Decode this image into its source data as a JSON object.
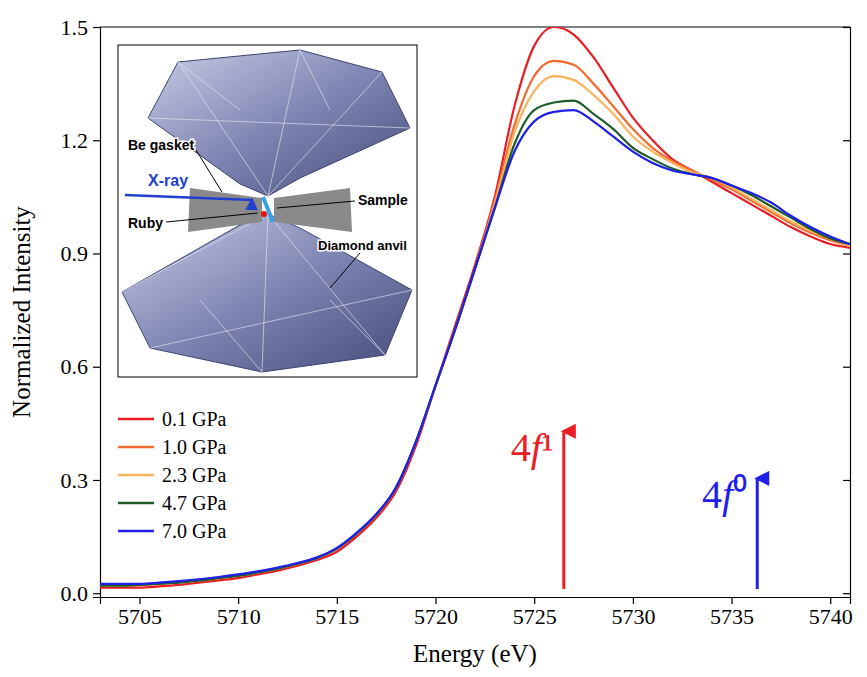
{
  "chart_data": {
    "type": "line",
    "x_label": "Energy (eV)",
    "y_label": "Normalized Intensity",
    "x": [
      5703,
      5704,
      5705,
      5706,
      5707,
      5708,
      5709,
      5710,
      5711,
      5712,
      5713,
      5714,
      5715,
      5716,
      5717,
      5718,
      5719,
      5720,
      5721,
      5722,
      5723,
      5724,
      5725,
      5726,
      5727,
      5728,
      5729,
      5730,
      5731,
      5732,
      5733,
      5734,
      5735,
      5736,
      5737,
      5738,
      5739,
      5740,
      5741
    ],
    "series": [
      {
        "name": "0.1 GPa",
        "color": "#ec1c24",
        "values": [
          0.015,
          0.015,
          0.015,
          0.018,
          0.022,
          0.028,
          0.034,
          0.04,
          0.05,
          0.06,
          0.073,
          0.088,
          0.11,
          0.15,
          0.2,
          0.27,
          0.39,
          0.55,
          0.71,
          0.87,
          1.05,
          1.29,
          1.45,
          1.5,
          1.48,
          1.42,
          1.34,
          1.26,
          1.2,
          1.15,
          1.12,
          1.09,
          1.06,
          1.03,
          1.0,
          0.97,
          0.945,
          0.925,
          0.915
        ]
      },
      {
        "name": "1.0 GPa",
        "color": "#f26b30",
        "values": [
          0.02,
          0.02,
          0.022,
          0.025,
          0.028,
          0.033,
          0.04,
          0.046,
          0.055,
          0.065,
          0.078,
          0.093,
          0.118,
          0.158,
          0.208,
          0.28,
          0.4,
          0.55,
          0.7,
          0.86,
          1.04,
          1.24,
          1.37,
          1.41,
          1.4,
          1.35,
          1.29,
          1.23,
          1.18,
          1.145,
          1.12,
          1.095,
          1.07,
          1.04,
          1.01,
          0.98,
          0.955,
          0.935,
          0.92
        ]
      },
      {
        "name": "2.3 GPa",
        "color": "#f7b560",
        "values": [
          0.02,
          0.02,
          0.022,
          0.025,
          0.028,
          0.033,
          0.04,
          0.046,
          0.055,
          0.065,
          0.078,
          0.093,
          0.118,
          0.158,
          0.208,
          0.28,
          0.4,
          0.55,
          0.7,
          0.86,
          1.03,
          1.22,
          1.33,
          1.37,
          1.36,
          1.32,
          1.27,
          1.21,
          1.17,
          1.14,
          1.115,
          1.1,
          1.075,
          1.045,
          1.015,
          0.985,
          0.96,
          0.94,
          0.92
        ]
      },
      {
        "name": "4.7 GPa",
        "color": "#1d5c2a",
        "values": [
          0.02,
          0.02,
          0.022,
          0.025,
          0.028,
          0.033,
          0.04,
          0.046,
          0.055,
          0.065,
          0.078,
          0.093,
          0.118,
          0.158,
          0.208,
          0.28,
          0.4,
          0.55,
          0.7,
          0.86,
          1.02,
          1.19,
          1.28,
          1.3,
          1.305,
          1.27,
          1.23,
          1.18,
          1.15,
          1.125,
          1.11,
          1.1,
          1.08,
          1.055,
          1.025,
          0.995,
          0.965,
          0.94,
          0.925
        ]
      },
      {
        "name": "7.0 GPa",
        "color": "#1f1fe8",
        "values": [
          0.025,
          0.025,
          0.025,
          0.028,
          0.032,
          0.037,
          0.043,
          0.05,
          0.058,
          0.068,
          0.08,
          0.095,
          0.12,
          0.16,
          0.21,
          0.28,
          0.4,
          0.55,
          0.7,
          0.86,
          1.02,
          1.17,
          1.25,
          1.275,
          1.28,
          1.25,
          1.21,
          1.17,
          1.14,
          1.12,
          1.11,
          1.1,
          1.08,
          1.06,
          1.035,
          1.0,
          0.97,
          0.945,
          0.925
        ]
      }
    ],
    "xlim": [
      5703,
      5741
    ],
    "ylim": [
      -0.01,
      1.5
    ],
    "xticks": [
      5705,
      5710,
      5715,
      5720,
      5725,
      5730,
      5735,
      5740
    ],
    "yticks": [
      {
        "value": 0,
        "label": "0.0"
      },
      0.3,
      0.6,
      0.9,
      1.2,
      1.5
    ],
    "legend": "lower left",
    "annotations": [
      {
        "text": "4f¹",
        "x": 5726.5,
        "y": 0.445,
        "color": "#ec1c24"
      },
      {
        "text": "4f⁰",
        "x": 5736.3,
        "y": 0.32,
        "color": "#1f1fe8"
      }
    ],
    "inset": {
      "labels": [
        "Be gasket",
        "X-ray",
        "Ruby",
        "Sample",
        "Diamond anvil"
      ]
    }
  }
}
